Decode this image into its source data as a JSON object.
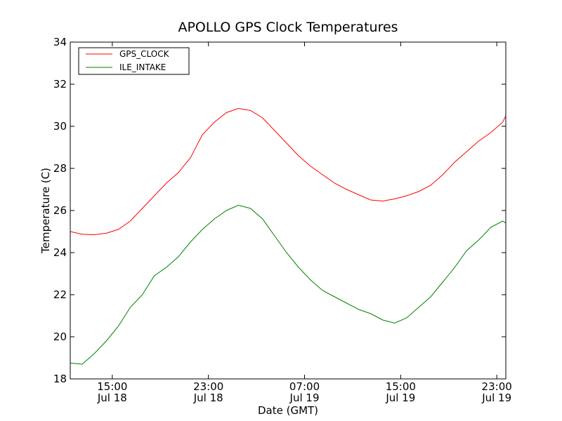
{
  "chart_data": {
    "type": "line",
    "title": "APOLLO GPS Clock Temperatures",
    "xlabel": "Date (GMT)",
    "ylabel": "Temperature (C)",
    "ylim": [
      18,
      34
    ],
    "xlim": [
      "Jul 18 11:30",
      "Jul 19 23:45"
    ],
    "grid": false,
    "legend_position": "top-left",
    "y_ticks": [
      18,
      20,
      22,
      24,
      26,
      28,
      30,
      32,
      34
    ],
    "x_ticks": [
      {
        "t": "Jul 18 15:00",
        "time": "15:00",
        "date": "Jul 18"
      },
      {
        "t": "Jul 18 23:00",
        "time": "23:00",
        "date": "Jul 18"
      },
      {
        "t": "Jul 19 07:00",
        "time": "07:00",
        "date": "Jul 19"
      },
      {
        "t": "Jul 19 15:00",
        "time": "15:00",
        "date": "Jul 19"
      },
      {
        "t": "Jul 19 23:00",
        "time": "23:00",
        "date": "Jul 19"
      }
    ],
    "series": [
      {
        "name": "GPS_CLOCK",
        "color": "#ff0000",
        "points": [
          [
            "Jul 18 11:30",
            25.0
          ],
          [
            "Jul 18 12:30",
            24.87
          ],
          [
            "Jul 18 13:30",
            24.85
          ],
          [
            "Jul 18 14:30",
            24.92
          ],
          [
            "Jul 18 15:30",
            25.1
          ],
          [
            "Jul 18 16:30",
            25.5
          ],
          [
            "Jul 18 17:30",
            26.1
          ],
          [
            "Jul 18 18:30",
            26.7
          ],
          [
            "Jul 18 19:30",
            27.3
          ],
          [
            "Jul 18 20:30",
            27.8
          ],
          [
            "Jul 18 21:30",
            28.5
          ],
          [
            "Jul 18 22:30",
            29.6
          ],
          [
            "Jul 18 23:30",
            30.2
          ],
          [
            "Jul 19 00:30",
            30.65
          ],
          [
            "Jul 19 01:30",
            30.85
          ],
          [
            "Jul 19 02:30",
            30.75
          ],
          [
            "Jul 19 03:30",
            30.4
          ],
          [
            "Jul 19 04:30",
            29.8
          ],
          [
            "Jul 19 05:30",
            29.2
          ],
          [
            "Jul 19 06:30",
            28.6
          ],
          [
            "Jul 19 07:30",
            28.1
          ],
          [
            "Jul 19 08:30",
            27.7
          ],
          [
            "Jul 19 09:30",
            27.3
          ],
          [
            "Jul 19 10:30",
            27.0
          ],
          [
            "Jul 19 11:30",
            26.75
          ],
          [
            "Jul 19 12:30",
            26.5
          ],
          [
            "Jul 19 13:30",
            26.45
          ],
          [
            "Jul 19 14:30",
            26.55
          ],
          [
            "Jul 19 15:30",
            26.7
          ],
          [
            "Jul 19 16:30",
            26.9
          ],
          [
            "Jul 19 17:30",
            27.2
          ],
          [
            "Jul 19 18:30",
            27.7
          ],
          [
            "Jul 19 19:30",
            28.3
          ],
          [
            "Jul 19 20:30",
            28.8
          ],
          [
            "Jul 19 21:30",
            29.3
          ],
          [
            "Jul 19 22:30",
            29.7
          ],
          [
            "Jul 19 23:30",
            30.2
          ],
          [
            "Jul 19 23:45",
            30.5
          ]
        ]
      },
      {
        "name": "ILE_INTAKE",
        "color": "#008000",
        "points": [
          [
            "Jul 18 11:30",
            18.75
          ],
          [
            "Jul 18 12:30",
            18.7
          ],
          [
            "Jul 18 13:30",
            19.2
          ],
          [
            "Jul 18 14:30",
            19.8
          ],
          [
            "Jul 18 15:30",
            20.5
          ],
          [
            "Jul 18 16:30",
            21.4
          ],
          [
            "Jul 18 17:30",
            22.0
          ],
          [
            "Jul 18 18:30",
            22.9
          ],
          [
            "Jul 18 19:30",
            23.3
          ],
          [
            "Jul 18 20:30",
            23.8
          ],
          [
            "Jul 18 21:30",
            24.5
          ],
          [
            "Jul 18 22:30",
            25.1
          ],
          [
            "Jul 18 23:30",
            25.6
          ],
          [
            "Jul 19 00:30",
            26.0
          ],
          [
            "Jul 19 01:30",
            26.25
          ],
          [
            "Jul 19 02:30",
            26.1
          ],
          [
            "Jul 19 03:30",
            25.6
          ],
          [
            "Jul 19 04:30",
            24.8
          ],
          [
            "Jul 19 05:30",
            24.0
          ],
          [
            "Jul 19 06:30",
            23.3
          ],
          [
            "Jul 19 07:30",
            22.7
          ],
          [
            "Jul 19 08:30",
            22.2
          ],
          [
            "Jul 19 09:30",
            21.9
          ],
          [
            "Jul 19 10:30",
            21.6
          ],
          [
            "Jul 19 11:30",
            21.3
          ],
          [
            "Jul 19 12:30",
            21.1
          ],
          [
            "Jul 19 13:30",
            20.8
          ],
          [
            "Jul 19 14:30",
            20.65
          ],
          [
            "Jul 19 15:30",
            20.9
          ],
          [
            "Jul 19 16:30",
            21.4
          ],
          [
            "Jul 19 17:30",
            21.9
          ],
          [
            "Jul 19 18:30",
            22.6
          ],
          [
            "Jul 19 19:30",
            23.3
          ],
          [
            "Jul 19 20:30",
            24.1
          ],
          [
            "Jul 19 21:30",
            24.6
          ],
          [
            "Jul 19 22:30",
            25.2
          ],
          [
            "Jul 19 23:30",
            25.5
          ],
          [
            "Jul 19 23:45",
            25.4
          ]
        ]
      }
    ]
  }
}
